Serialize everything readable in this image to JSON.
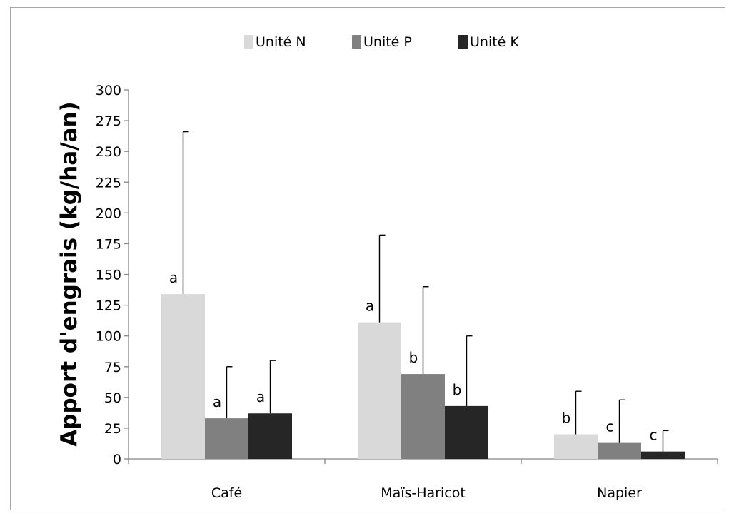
{
  "chart_data": {
    "type": "bar",
    "ylabel": "Apport d'engrais (kg/ha/an)",
    "xlabel": "",
    "ylim": [
      0,
      300
    ],
    "yticks": [
      0,
      25,
      50,
      75,
      100,
      125,
      150,
      175,
      200,
      225,
      250,
      275,
      300
    ],
    "categories": [
      "Café",
      "Maïs-Haricot",
      "Napier"
    ],
    "legend_position": "top-center",
    "grid": false,
    "series": [
      {
        "name": "Unité N",
        "color": "#d9d9d9",
        "values": [
          134,
          111,
          20
        ],
        "error_upper": [
          266,
          182,
          55
        ],
        "significance": [
          "a",
          "a",
          "b"
        ]
      },
      {
        "name": "Unité P",
        "color": "#808080",
        "values": [
          33,
          69,
          13
        ],
        "error_upper": [
          75,
          140,
          48
        ],
        "significance": [
          "a",
          "b",
          "c"
        ]
      },
      {
        "name": "Unité K",
        "color": "#262626",
        "values": [
          37,
          43,
          6
        ],
        "error_upper": [
          80,
          100,
          23
        ],
        "significance": [
          "a",
          "b",
          "c"
        ]
      }
    ]
  }
}
